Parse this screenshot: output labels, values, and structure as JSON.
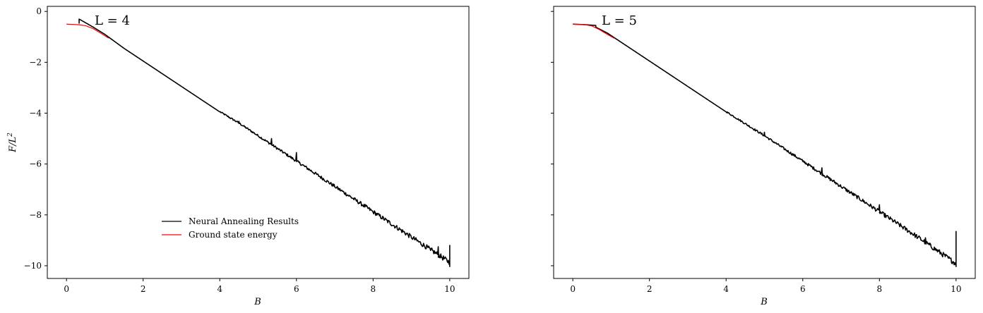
{
  "chart_data": [
    {
      "type": "line",
      "title": "L = 4",
      "xlabel": "B",
      "ylabel": "F/L",
      "ylabel_sup": "2",
      "xlim": [
        -0.5,
        10.5
      ],
      "ylim": [
        -10.5,
        0.2
      ],
      "xticks": [
        0,
        2,
        4,
        6,
        8,
        10
      ],
      "yticks": [
        0,
        -2,
        -4,
        -6,
        -8,
        -10
      ],
      "xtick_labels": [
        "0",
        "2",
        "4",
        "6",
        "8",
        "10"
      ],
      "ytick_labels": [
        "0",
        "−2",
        "−4",
        "−6",
        "−8",
        "−10"
      ],
      "legend": "lower-left",
      "grid": false,
      "series": [
        {
          "name": "Neural Annealing Results",
          "color": "#000000",
          "x": [
            0.33,
            0.33,
            0.7,
            1.0,
            1.5,
            2.0,
            3.0,
            4.0,
            4.5,
            5.0,
            6.0,
            7.0,
            8.0,
            9.0,
            9.5,
            10.0,
            10.0,
            10.0
          ],
          "y": [
            -0.48,
            -0.3,
            -0.62,
            -0.9,
            -1.45,
            -1.95,
            -2.95,
            -3.95,
            -4.4,
            -4.9,
            -5.9,
            -6.9,
            -7.9,
            -8.9,
            -9.4,
            -9.9,
            -9.2,
            -10.05
          ],
          "noise_from": 4.0,
          "noise_to": 10.0,
          "noise_amplitude": 0.15,
          "spikes": [
            {
              "x": 4.5,
              "y": -4.32
            },
            {
              "x": 5.35,
              "y": -5.0
            },
            {
              "x": 6.0,
              "y": -5.55
            },
            {
              "x": 7.8,
              "y": -7.6
            },
            {
              "x": 9.7,
              "y": -9.25
            }
          ]
        },
        {
          "name": "Ground state energy",
          "color": "#ff0000",
          "x": [
            0.0,
            0.3,
            0.5,
            0.7,
            0.9,
            1.1
          ],
          "y": [
            -0.5,
            -0.52,
            -0.56,
            -0.68,
            -0.86,
            -1.05
          ]
        }
      ]
    },
    {
      "type": "line",
      "title": "L = 5",
      "xlabel": "B",
      "ylabel": "",
      "xlim": [
        -0.5,
        10.5
      ],
      "ylim": [
        -10.5,
        0.2
      ],
      "xticks": [
        0,
        2,
        4,
        6,
        8,
        10
      ],
      "yticks": [
        0,
        -2,
        -4,
        -6,
        -8,
        -10
      ],
      "xtick_labels": [
        "0",
        "2",
        "4",
        "6",
        "8",
        "10"
      ],
      "ytick_labels": [],
      "legend": "none",
      "grid": false,
      "series": [
        {
          "name": "Neural Annealing Results",
          "color": "#000000",
          "x": [
            0.0,
            0.3,
            0.6,
            0.6,
            0.9,
            1.2,
            2.0,
            3.0,
            4.0,
            5.0,
            6.0,
            7.0,
            8.0,
            9.0,
            10.0,
            10.0,
            10.0
          ],
          "y": [
            -0.5,
            -0.52,
            -0.55,
            -0.62,
            -0.85,
            -1.15,
            -1.95,
            -2.95,
            -3.95,
            -4.9,
            -5.9,
            -6.9,
            -7.9,
            -8.9,
            -9.95,
            -8.65,
            -10.05
          ],
          "noise_from": 4.0,
          "noise_to": 10.0,
          "noise_amplitude": 0.15,
          "spikes": [
            {
              "x": 5.0,
              "y": -4.75
            },
            {
              "x": 6.5,
              "y": -6.15
            },
            {
              "x": 8.0,
              "y": -7.6
            },
            {
              "x": 9.2,
              "y": -8.9
            }
          ]
        },
        {
          "name": "Ground state energy",
          "color": "#ff0000",
          "x": [
            0.0,
            0.3,
            0.5,
            0.7,
            0.9,
            1.1
          ],
          "y": [
            -0.5,
            -0.52,
            -0.57,
            -0.72,
            -0.9,
            -1.07
          ]
        }
      ]
    }
  ]
}
